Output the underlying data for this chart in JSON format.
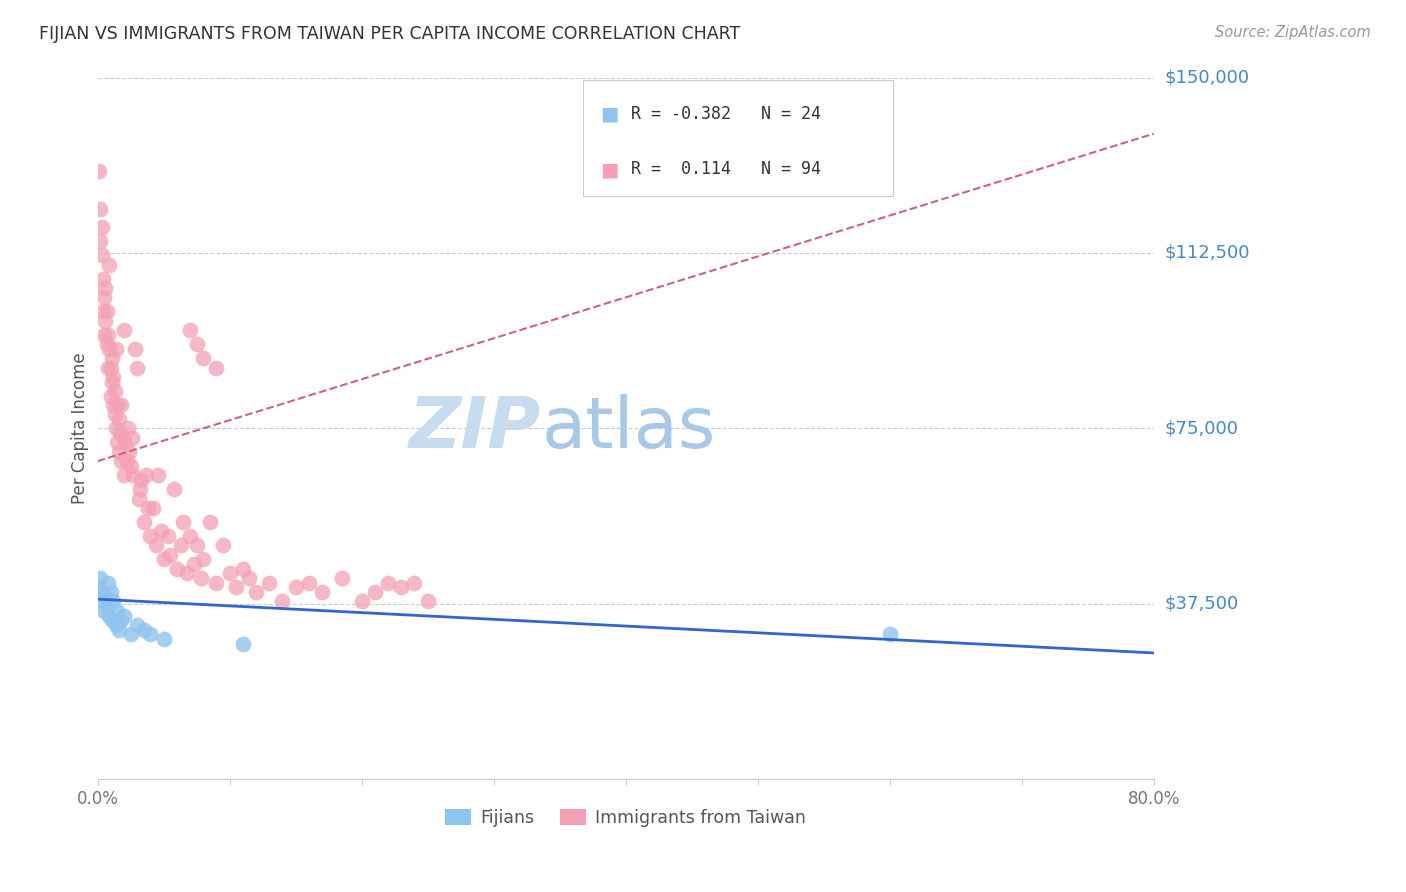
{
  "title": "FIJIAN VS IMMIGRANTS FROM TAIWAN PER CAPITA INCOME CORRELATION CHART",
  "source": "Source: ZipAtlas.com",
  "ylabel": "Per Capita Income",
  "xlim": [
    0.0,
    0.8
  ],
  "ylim": [
    0,
    150000
  ],
  "ytick_vals": [
    37500,
    75000,
    112500,
    150000
  ],
  "ytick_labels": [
    "$37,500",
    "$75,000",
    "$112,500",
    "$150,000"
  ],
  "xticks": [
    0.0,
    0.1,
    0.2,
    0.3,
    0.4,
    0.5,
    0.6,
    0.7,
    0.8
  ],
  "fijian_color": "#8EC4EE",
  "taiwan_color": "#F4A0B5",
  "fijian_R": -0.382,
  "fijian_N": 24,
  "taiwan_R": 0.114,
  "taiwan_N": 94,
  "trend_blue_color": "#3366CC",
  "trend_pink_color": "#CC6677",
  "watermark_zip_color": "#C8DCF0",
  "watermark_atlas_color": "#A8C8E8",
  "fijian_x": [
    0.001,
    0.002,
    0.003,
    0.004,
    0.005,
    0.006,
    0.007,
    0.008,
    0.009,
    0.01,
    0.011,
    0.012,
    0.014,
    0.015,
    0.016,
    0.018,
    0.02,
    0.025,
    0.03,
    0.035,
    0.04,
    0.05,
    0.11,
    0.6
  ],
  "fijian_y": [
    41000,
    43000,
    40000,
    38000,
    36000,
    39000,
    37000,
    42000,
    35000,
    40000,
    34000,
    38000,
    33000,
    36000,
    32000,
    34000,
    35000,
    31000,
    33000,
    32000,
    31000,
    30000,
    29000,
    31000
  ],
  "taiwan_x": [
    0.001,
    0.002,
    0.002,
    0.003,
    0.003,
    0.004,
    0.004,
    0.005,
    0.005,
    0.006,
    0.006,
    0.007,
    0.007,
    0.008,
    0.008,
    0.009,
    0.009,
    0.01,
    0.01,
    0.011,
    0.011,
    0.012,
    0.012,
    0.013,
    0.013,
    0.014,
    0.014,
    0.015,
    0.015,
    0.016,
    0.016,
    0.017,
    0.018,
    0.018,
    0.019,
    0.02,
    0.02,
    0.021,
    0.022,
    0.023,
    0.024,
    0.025,
    0.026,
    0.027,
    0.028,
    0.03,
    0.031,
    0.032,
    0.033,
    0.035,
    0.037,
    0.038,
    0.04,
    0.042,
    0.044,
    0.046,
    0.048,
    0.05,
    0.053,
    0.055,
    0.058,
    0.06,
    0.063,
    0.065,
    0.068,
    0.07,
    0.073,
    0.075,
    0.078,
    0.08,
    0.085,
    0.09,
    0.095,
    0.1,
    0.105,
    0.11,
    0.115,
    0.12,
    0.13,
    0.14,
    0.15,
    0.16,
    0.17,
    0.185,
    0.2,
    0.21,
    0.22,
    0.23,
    0.24,
    0.25,
    0.07,
    0.075,
    0.08,
    0.09
  ],
  "taiwan_y": [
    130000,
    122000,
    115000,
    118000,
    112000,
    100000,
    107000,
    95000,
    103000,
    105000,
    98000,
    93000,
    100000,
    88000,
    95000,
    110000,
    92000,
    82000,
    88000,
    85000,
    90000,
    80000,
    86000,
    78000,
    83000,
    92000,
    75000,
    72000,
    80000,
    70000,
    77000,
    74000,
    80000,
    68000,
    73000,
    96000,
    65000,
    72000,
    68000,
    75000,
    70000,
    67000,
    73000,
    65000,
    92000,
    88000,
    60000,
    62000,
    64000,
    55000,
    65000,
    58000,
    52000,
    58000,
    50000,
    65000,
    53000,
    47000,
    52000,
    48000,
    62000,
    45000,
    50000,
    55000,
    44000,
    52000,
    46000,
    50000,
    43000,
    47000,
    55000,
    42000,
    50000,
    44000,
    41000,
    45000,
    43000,
    40000,
    42000,
    38000,
    41000,
    42000,
    40000,
    43000,
    38000,
    40000,
    42000,
    41000,
    42000,
    38000,
    96000,
    93000,
    90000,
    88000
  ],
  "blue_trend_x0": 0.0,
  "blue_trend_y0": 38500,
  "blue_trend_x1": 0.8,
  "blue_trend_y1": 27000,
  "pink_trend_x0": 0.0,
  "pink_trend_y0": 68000,
  "pink_trend_x1": 0.8,
  "pink_trend_y1": 138000
}
